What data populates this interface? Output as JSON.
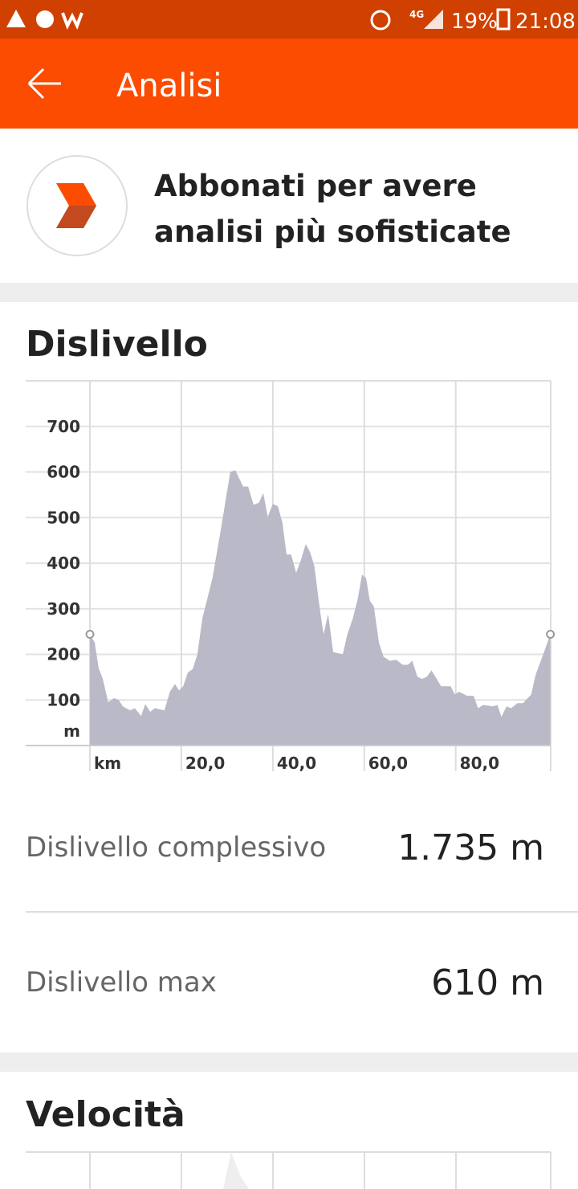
{
  "status_bar": {
    "network": "4G",
    "battery": "19%",
    "time": "21:08"
  },
  "app_bar": {
    "title": "Analisi"
  },
  "promo": {
    "line1": "Abbonati per avere",
    "line2": "analisi più sofisticate"
  },
  "elevation_section": {
    "title": "Dislivello"
  },
  "chart_data": {
    "type": "area",
    "color": "#b9b9c7",
    "y_axis_label": "m",
    "grid": true,
    "x": [
      0,
      1.05,
      1.9,
      2.8,
      4.0,
      5.3,
      6.3,
      7.2,
      8.8,
      9.8,
      11.2,
      12.1,
      13.2,
      14.2,
      16.3,
      17.5,
      18.6,
      19.5,
      20.4,
      21.4,
      22.5,
      23.5,
      24.6,
      26.8,
      28.6,
      29.6,
      30.7,
      31.8,
      33.5,
      34.6,
      35.8,
      37.0,
      37.9,
      38.9,
      40.0,
      41.1,
      42.1,
      43.0,
      44.0,
      45.1,
      46.1,
      47.2,
      48.2,
      49.1,
      50.2,
      51.1,
      52.1,
      53.2,
      55.3,
      56.3,
      57.5,
      58.6,
      59.5,
      60.4,
      61.2,
      62.1,
      63.2,
      64.2,
      65.6,
      67.0,
      68.4,
      69.5,
      70.5,
      71.6,
      72.6,
      73.7,
      74.7,
      75.8,
      76.8,
      78.9,
      79.8,
      80.7,
      82.5,
      83.9,
      84.9,
      86.0,
      88.1,
      89.1,
      90.0,
      91.1,
      92.1,
      93.5,
      94.7,
      96.5,
      97.5,
      98.8,
      100.7
    ],
    "values": [
      244,
      226,
      170,
      147,
      95,
      104,
      100,
      86,
      77,
      82,
      65,
      91,
      74,
      82,
      77,
      118,
      135,
      121,
      130,
      160,
      168,
      200,
      279,
      367,
      472,
      533,
      600,
      604,
      568,
      568,
      528,
      533,
      554,
      502,
      530,
      525,
      489,
      419,
      419,
      379,
      405,
      442,
      423,
      393,
      305,
      244,
      288,
      205,
      200,
      244,
      279,
      323,
      375,
      367,
      318,
      305,
      226,
      195,
      186,
      188,
      177,
      177,
      186,
      151,
      146,
      151,
      165,
      147,
      130,
      130,
      112,
      118,
      109,
      109,
      82,
      89,
      86,
      89,
      63,
      86,
      82,
      93,
      93,
      112,
      156,
      191,
      244
    ],
    "xlim": [
      0,
      101
    ],
    "ylim": [
      0,
      800
    ],
    "xticks": [
      {
        "value": 0,
        "label": "km"
      },
      {
        "value": 20,
        "label": "20,0"
      },
      {
        "value": 40,
        "label": "40,0"
      },
      {
        "value": 60,
        "label": "60,0"
      },
      {
        "value": 80,
        "label": "80,0"
      }
    ],
    "yticks": [
      100,
      200,
      300,
      400,
      500,
      600,
      700
    ]
  },
  "stats": [
    {
      "label": "Dislivello complessivo",
      "value": "1.735 m"
    },
    {
      "label": "Dislivello max",
      "value": "610 m"
    }
  ],
  "speed_section": {
    "title": "Velocità"
  }
}
